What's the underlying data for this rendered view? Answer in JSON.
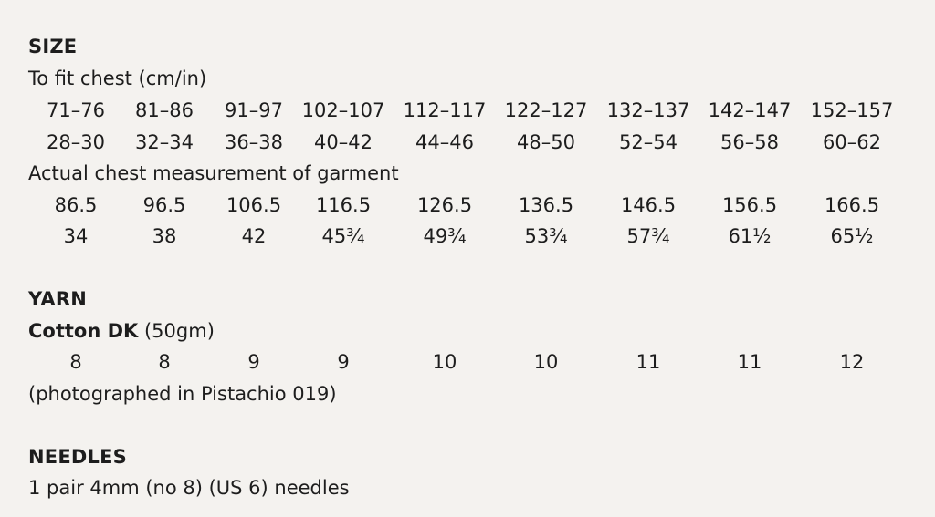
{
  "size": {
    "heading": "SIZE",
    "fit_label": "To fit chest  (cm/in)",
    "fit_cm": [
      "71–76",
      "81–86",
      "91–97",
      "102–107",
      "112–117",
      "122–127",
      "132–137",
      "142–147",
      "152–157"
    ],
    "fit_in": [
      "28–30",
      "32–34",
      "36–38",
      "40–42",
      "44–46",
      "48–50",
      "52–54",
      "56–58",
      "60–62"
    ],
    "actual_label": "Actual chest measurement of garment",
    "actual_cm": [
      "86.5",
      "96.5",
      "106.5",
      "116.5",
      "126.5",
      "136.5",
      "146.5",
      "156.5",
      "166.5"
    ],
    "actual_in": [
      "34",
      "38",
      "42",
      "45¾",
      "49¾",
      "53¾",
      "57¾",
      "61½",
      "65½"
    ]
  },
  "yarn": {
    "heading": "YARN",
    "name": "Cotton DK",
    "weight": " (50gm)",
    "quantities": [
      "8",
      "8",
      "9",
      "9",
      "10",
      "10",
      "11",
      "11",
      "12"
    ],
    "note": "(photographed in Pistachio 019)"
  },
  "needles": {
    "heading": "NEEDLES",
    "text": "1 pair 4mm (no 8) (US 6) needles"
  }
}
